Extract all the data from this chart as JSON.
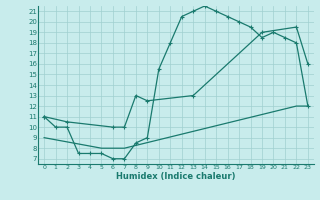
{
  "xlabel": "Humidex (Indice chaleur)",
  "ylabel": "",
  "xlim": [
    -0.5,
    23.5
  ],
  "ylim": [
    6.5,
    21.5
  ],
  "xticks": [
    0,
    1,
    2,
    3,
    4,
    5,
    6,
    7,
    8,
    9,
    10,
    11,
    12,
    13,
    14,
    15,
    16,
    17,
    18,
    19,
    20,
    21,
    22,
    23
  ],
  "yticks": [
    7,
    8,
    9,
    10,
    11,
    12,
    13,
    14,
    15,
    16,
    17,
    18,
    19,
    20,
    21
  ],
  "bg_color": "#c8ecec",
  "line_color": "#1a7a6e",
  "grid_color": "#a0d0d0",
  "line1_x": [
    0,
    1,
    2,
    3,
    4,
    5,
    6,
    7,
    8,
    9,
    10,
    11,
    12,
    13,
    14,
    15,
    16,
    17,
    18,
    19,
    20,
    21,
    22,
    23
  ],
  "line1_y": [
    11,
    10,
    10,
    7.5,
    7.5,
    7.5,
    7,
    7,
    8.5,
    9,
    15.5,
    18,
    20.5,
    21,
    21.5,
    21,
    20.5,
    20,
    19.5,
    18.5,
    19,
    18.5,
    18,
    12
  ],
  "line2_x": [
    0,
    2,
    6,
    7,
    8,
    9,
    13,
    19,
    22,
    23
  ],
  "line2_y": [
    11,
    10.5,
    10,
    10,
    13,
    12.5,
    13,
    19,
    19.5,
    16
  ],
  "line3_x": [
    0,
    5,
    6,
    7,
    22,
    23
  ],
  "line3_y": [
    9,
    8,
    8,
    8,
    12,
    12
  ],
  "font_size_tick": 5,
  "font_size_xlabel": 6
}
